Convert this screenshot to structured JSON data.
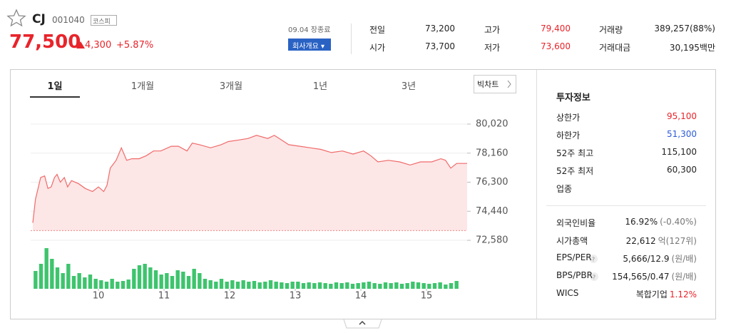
{
  "header": {
    "name": "CJ",
    "code": "001040",
    "market": "코스피",
    "price": "77,500",
    "change": "4,300",
    "change_pct": "+5.87%",
    "status": "09.04 장종료",
    "company_button": "회사개요"
  },
  "quote": [
    [
      {
        "label": "전일",
        "value": "73,200"
      },
      {
        "label": "고가",
        "value": "79,400"
      },
      {
        "label": "거래량",
        "value": "389,257(88%)"
      }
    ],
    [
      {
        "label": "시가",
        "value": "73,700"
      },
      {
        "label": "저가",
        "value": "73,600"
      },
      {
        "label": "거래대금",
        "value": "30,195백만"
      }
    ]
  ],
  "tabs": [
    "1일",
    "1개월",
    "3개월",
    "1년",
    "3년"
  ],
  "big_chart": "빅차트",
  "chart_data": [
    {
      "type": "line",
      "color": "#f06a6a",
      "fill": "#fde6e6",
      "baseline": 73200,
      "x": [
        9.0,
        9.04,
        9.12,
        9.18,
        9.23,
        9.28,
        9.33,
        9.37,
        9.42,
        9.48,
        9.53,
        9.59,
        9.7,
        9.8,
        9.91,
        10.0,
        10.08,
        10.13,
        10.18,
        10.27,
        10.35,
        10.43,
        10.51,
        10.62,
        10.73,
        10.84,
        10.95,
        11.11,
        11.22,
        11.35,
        11.43,
        11.54,
        11.71,
        11.87,
        11.98,
        12.14,
        12.28,
        12.41,
        12.58,
        12.68,
        12.79,
        12.9,
        13.07,
        13.23,
        13.39,
        13.55,
        13.72,
        13.88,
        14.04,
        14.15,
        14.26,
        14.42,
        14.59,
        14.75,
        14.91,
        15.08,
        15.22,
        15.29,
        15.37,
        15.46,
        15.62
      ],
      "values": [
        73700,
        75200,
        76600,
        76700,
        75900,
        76000,
        76600,
        76800,
        76300,
        76600,
        76000,
        76400,
        76200,
        75900,
        75700,
        76000,
        75700,
        76100,
        77200,
        77700,
        78500,
        77700,
        77800,
        77800,
        78000,
        78300,
        78300,
        78600,
        78600,
        78300,
        78800,
        78700,
        78500,
        78700,
        78900,
        79000,
        79100,
        79300,
        79100,
        79300,
        79000,
        78700,
        78600,
        78500,
        78400,
        78200,
        78300,
        78100,
        78300,
        78000,
        77600,
        77700,
        77600,
        77400,
        77600,
        77600,
        77800,
        77700,
        77200,
        77500,
        77500
      ],
      "xlim": [
        9,
        15.62
      ],
      "xticks": [
        10,
        11,
        12,
        13,
        14,
        15
      ],
      "ylim": [
        72580,
        80020
      ],
      "yticks": [
        {
          "value": 80020,
          "label": "80,020"
        },
        {
          "value": 78160,
          "label": "78,160"
        },
        {
          "value": 76300,
          "label": "76,300"
        },
        {
          "value": 74440,
          "label": "74,440"
        },
        {
          "value": 72580,
          "label": "72,580"
        }
      ],
      "grid": true
    },
    {
      "type": "bar",
      "color": "#3ec46d",
      "ylim": [
        0,
        60
      ],
      "categories": [
        null,
        null,
        null,
        null,
        null,
        null,
        null,
        null,
        null,
        null,
        null,
        null,
        null,
        null,
        null,
        null,
        null,
        null,
        null,
        null,
        null,
        null,
        null,
        null,
        null,
        null,
        null,
        null,
        null,
        null,
        null,
        null,
        null,
        null,
        null,
        null,
        null,
        null,
        null,
        null,
        null,
        null,
        null,
        null,
        null,
        null,
        null,
        null,
        null,
        null,
        null,
        null,
        null,
        null,
        null,
        null,
        null,
        null,
        null,
        null,
        null,
        null,
        null,
        null,
        null,
        null,
        null,
        null,
        null,
        null,
        null,
        null,
        null,
        null,
        null,
        null,
        null,
        null
      ],
      "values": [
        25,
        35,
        57,
        42,
        30,
        22,
        35,
        18,
        22,
        16,
        20,
        14,
        12,
        10,
        14,
        10,
        11,
        13,
        28,
        33,
        35,
        30,
        26,
        20,
        22,
        18,
        26,
        24,
        18,
        28,
        22,
        14,
        12,
        10,
        14,
        10,
        12,
        10,
        12,
        10,
        11,
        9,
        10,
        12,
        10,
        9,
        8,
        10,
        10,
        8,
        9,
        8,
        9,
        8,
        7,
        9,
        8,
        9,
        7,
        8,
        9,
        10,
        8,
        7,
        9,
        8,
        9,
        7,
        8,
        10,
        9,
        8,
        7,
        8,
        9,
        6,
        8,
        11
      ]
    }
  ],
  "info": {
    "title": "투자정보",
    "group1": [
      {
        "label": "상한가",
        "value": "95,100"
      },
      {
        "label": "하한가",
        "value": "51,300"
      },
      {
        "label": "52주 최고",
        "value": "115,100"
      },
      {
        "label": "52주 최저",
        "value": "60,300"
      },
      {
        "label": "업종"
      }
    ],
    "group2": [
      {
        "label": "외국인비율",
        "value": "16.92%",
        "unit": "(-0.40%)"
      },
      {
        "label": "시가총액",
        "value": "22,612",
        "unit": "억(127위)"
      },
      {
        "label": "EPS/PER",
        "value": "5,666/12.9",
        "unit": "(원/배)"
      },
      {
        "label": "BPS/PBR",
        "value": "154,565/0.47",
        "unit": "(원/배)"
      },
      {
        "label": "WICS",
        "value": "복합기업",
        "unit": "1.12%"
      }
    ]
  }
}
